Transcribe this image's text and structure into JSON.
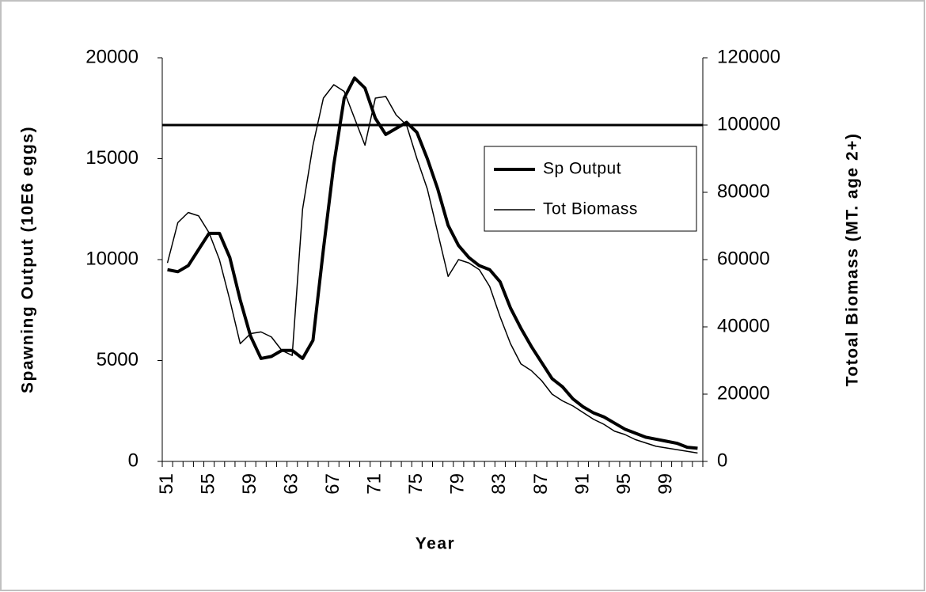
{
  "chart_data": {
    "type": "line",
    "x_label": "Year",
    "y_label": "Spawning Output (10E6 eggs)",
    "y2_label": "Totoal Biomass (MT. age 2+)",
    "categories": [
      "51",
      null,
      null,
      null,
      "55",
      null,
      null,
      null,
      "59",
      null,
      null,
      null,
      "63",
      null,
      null,
      null,
      "67",
      null,
      null,
      null,
      "71",
      null,
      null,
      null,
      "75",
      null,
      null,
      null,
      "79",
      null,
      null,
      null,
      "83",
      null,
      null,
      null,
      "87",
      null,
      null,
      null,
      "91",
      null,
      null,
      null,
      "95",
      null,
      null,
      null,
      "99",
      null,
      null,
      null
    ],
    "series": [
      {
        "name": "Sp Output",
        "color": "#000000",
        "width": 4,
        "values": [
          9500,
          9400,
          9700,
          10500,
          11300,
          11300,
          10100,
          8000,
          6200,
          5100,
          5200,
          5500,
          5500,
          5100,
          6000,
          10500,
          14700,
          18000,
          19000,
          18500,
          17000,
          16200,
          16500,
          16800,
          16300,
          15000,
          13500,
          11700,
          10700,
          10100,
          9700,
          9500,
          8900,
          7600,
          6600,
          5700,
          4900,
          4100,
          3700,
          3100,
          2700,
          2400,
          2200,
          1900,
          1600,
          1400,
          1200,
          1100,
          1000,
          900,
          700,
          650
        ]
      },
      {
        "name": "Tot Biomass",
        "color": "#000000",
        "width": 1.5,
        "axis": "y2",
        "values": [
          59000,
          71000,
          74000,
          73000,
          68000,
          60000,
          48000,
          35000,
          38000,
          38500,
          37000,
          33000,
          31500,
          75000,
          94000,
          108000,
          112000,
          110000,
          102000,
          94000,
          108000,
          108500,
          103000,
          100000,
          90000,
          81000,
          68000,
          55000,
          60000,
          59000,
          57000,
          52000,
          43000,
          35000,
          29000,
          27000,
          24000,
          20000,
          18000,
          16500,
          14500,
          12500,
          11000,
          9000,
          8000,
          6500,
          5500,
          4500,
          4000,
          3500,
          3000,
          2500
        ]
      }
    ],
    "reference_line": {
      "value": 100000,
      "axis": "y2",
      "color": "#000000",
      "width": 3
    },
    "ylim": [
      0,
      20000
    ],
    "yticks": [
      0,
      5000,
      10000,
      15000,
      20000
    ],
    "y2lim": [
      0,
      120000
    ],
    "y2ticks": [
      0,
      20000,
      40000,
      60000,
      80000,
      100000,
      120000
    ],
    "legend": "right",
    "grid": false
  }
}
